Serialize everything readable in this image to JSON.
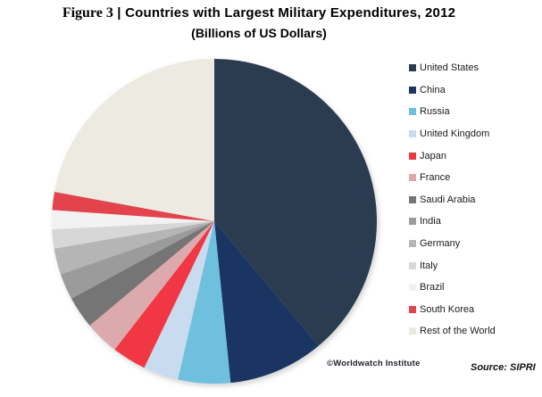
{
  "figure": {
    "label": "Figure 3",
    "separator": "|",
    "title": "Countries with Largest Military Expenditures, 2012",
    "subtitle": "(Billions of US Dollars)"
  },
  "chart_data": {
    "type": "pie",
    "title": "Figure 3 | Countries with Largest Military Expenditures, 2012 (Billions of US Dollars)",
    "value_note": "percent of world total, estimated from slice angles (no numeric labels shown in figure)",
    "start_angle_deg": 0,
    "direction": "clockwise",
    "legend_position": "right",
    "slices": [
      {
        "label": "United States",
        "value_percent": 38.9,
        "color": "#2B3C50"
      },
      {
        "label": "China",
        "value_percent": 9.5,
        "color": "#1B3563"
      },
      {
        "label": "Russia",
        "value_percent": 5.2,
        "color": "#6FC0DF"
      },
      {
        "label": "United Kingdom",
        "value_percent": 3.5,
        "color": "#C9DBEE"
      },
      {
        "label": "Japan",
        "value_percent": 3.4,
        "color": "#F03743"
      },
      {
        "label": "France",
        "value_percent": 3.4,
        "color": "#DCA9AC"
      },
      {
        "label": "Saudi Arabia",
        "value_percent": 3.2,
        "color": "#757575"
      },
      {
        "label": "India",
        "value_percent": 2.6,
        "color": "#9B9B9B"
      },
      {
        "label": "Germany",
        "value_percent": 2.6,
        "color": "#B5B5B5"
      },
      {
        "label": "Italy",
        "value_percent": 1.9,
        "color": "#D7D7D7"
      },
      {
        "label": "Brazil",
        "value_percent": 1.9,
        "color": "#F2F2F2"
      },
      {
        "label": "South Korea",
        "value_percent": 1.8,
        "color": "#E2434D"
      },
      {
        "label": "Rest of the World",
        "value_percent": 22.1,
        "color": "#EDEAE2"
      }
    ]
  },
  "credits": {
    "attribution": "©Worldwatch Institute",
    "source": "Source: SIPRI"
  }
}
